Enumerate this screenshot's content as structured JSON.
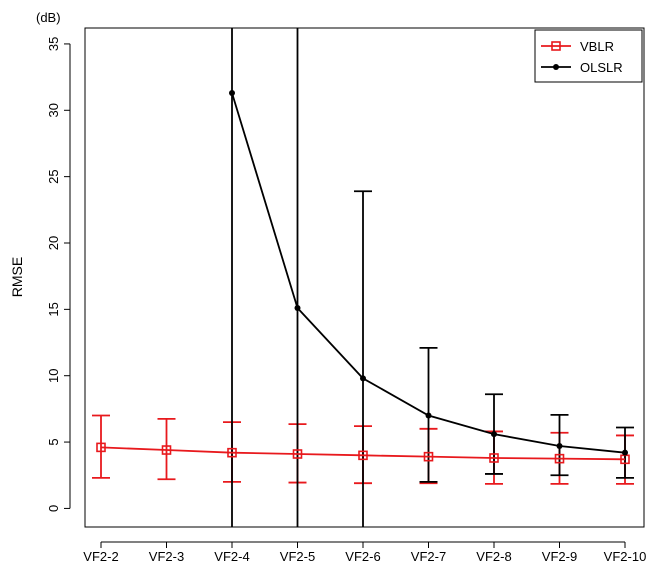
{
  "chart_data": {
    "type": "line",
    "title": "",
    "xlabel": "",
    "ylabel": "RMSE",
    "y_unit": "(dB)",
    "ylim": [
      -1.4,
      36.2
    ],
    "y_ticks": [
      0,
      5,
      10,
      15,
      20,
      25,
      30,
      35
    ],
    "grid": false,
    "legend_position": "top-right",
    "categories": [
      "VF2-2",
      "VF2-3",
      "VF2-4",
      "VF2-5",
      "VF2-6",
      "VF2-7",
      "VF2-8",
      "VF2-9",
      "VF2-10"
    ],
    "series": [
      {
        "name": "VBLR",
        "color": "#e8191d",
        "marker": "open-square",
        "values": [
          4.6,
          4.4,
          4.2,
          4.1,
          4.0,
          3.9,
          3.8,
          3.75,
          3.7
        ],
        "error_low": [
          2.3,
          2.2,
          2.0,
          1.95,
          1.9,
          1.9,
          1.85,
          1.85,
          1.85
        ],
        "error_high": [
          7.0,
          6.75,
          6.5,
          6.35,
          6.2,
          6.0,
          5.8,
          5.7,
          5.5
        ]
      },
      {
        "name": "OLSLR",
        "color": "#000000",
        "marker": "filled-circle",
        "values": [
          null,
          null,
          31.3,
          15.1,
          9.8,
          7.0,
          5.6,
          4.7,
          4.2
        ],
        "error_low": [
          null,
          null,
          -5,
          -5,
          -5,
          2.0,
          2.6,
          2.5,
          2.3
        ],
        "error_high": [
          null,
          null,
          40,
          40,
          23.9,
          12.1,
          8.6,
          7.05,
          6.1
        ]
      }
    ]
  }
}
